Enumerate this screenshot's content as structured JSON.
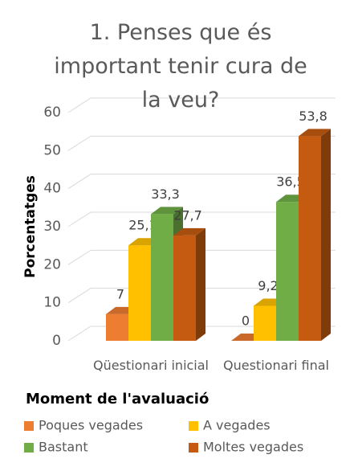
{
  "chart_data": {
    "type": "bar3d",
    "title": "1. Penses que és important tenir cura de la veu?",
    "y_label": "Porcentatges",
    "x_label": "Moment de l'avaluació",
    "categories": [
      "Qüestionari inicial",
      "Questionari final"
    ],
    "series": [
      {
        "name": "Poques vegades",
        "color": "#ED7D31",
        "values": [
          7,
          0
        ],
        "value_labels": [
          "7",
          "0"
        ]
      },
      {
        "name": "A vegades",
        "color": "#FFC000",
        "values": [
          25.1,
          9.2
        ],
        "value_labels": [
          "25,1",
          "9,2"
        ]
      },
      {
        "name": "Bastant",
        "color": "#70AD47",
        "values": [
          33.3,
          36.5
        ],
        "value_labels": [
          "33,3",
          "36,5"
        ]
      },
      {
        "name": "Moltes vegades",
        "color": "#C55A11",
        "values": [
          27.7,
          53.8
        ],
        "value_labels": [
          "27,7",
          "53,8"
        ]
      }
    ],
    "ylim": [
      0,
      60
    ],
    "yticks": [
      0,
      10,
      20,
      30,
      40,
      50,
      60
    ],
    "grid": true,
    "legend": "bottom"
  }
}
